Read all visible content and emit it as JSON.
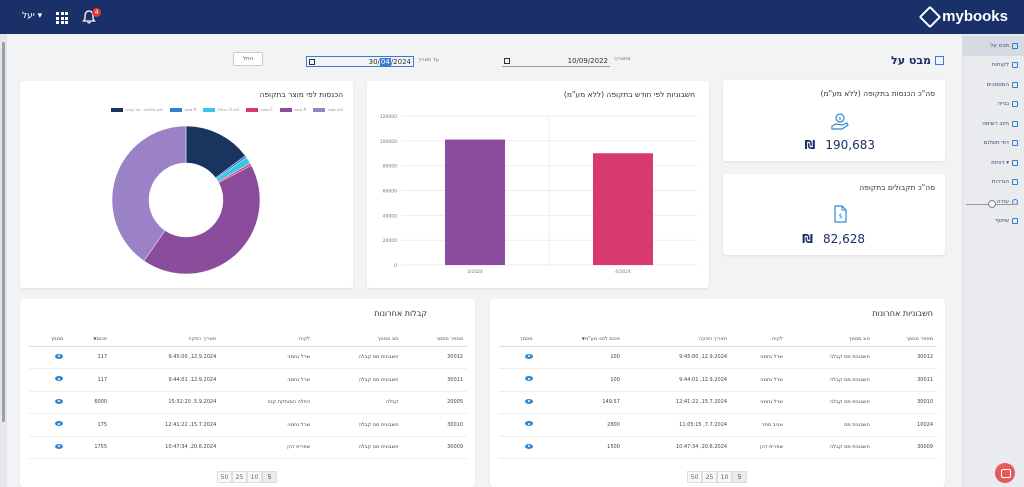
{
  "header": {
    "logo_text": "mybooks",
    "user_menu": "יעל ▾",
    "notification_count": "4"
  },
  "sidebar": {
    "items": [
      {
        "label": "מבט על",
        "active": true
      },
      {
        "label": "לקוחות"
      },
      {
        "label": "המסמכים"
      },
      {
        "label": "גבייה"
      },
      {
        "label": "חיוב רשימה"
      },
      {
        "label": "דפי תשלום"
      },
      {
        "label": "דוחות ▾"
      },
      {
        "label": "הגדרות"
      },
      {
        "label": "עזרה"
      },
      {
        "label": "שיתוף"
      }
    ]
  },
  "page": {
    "title": "מבט על",
    "from_label": "מתאריך",
    "from_date": "10/09/2022",
    "to_label": "עד תאריך",
    "to_date_prefix": "30/",
    "to_date_selected": "04",
    "to_date_suffix": "/2024",
    "clear_button": "החל"
  },
  "kpi": {
    "income": {
      "title": "סה\"כ הכנסות בתקופה (ללא מע\"מ)",
      "currency": "₪",
      "value": "190,683"
    },
    "receipts": {
      "title": "סה\"כ תקבולים בתקופה",
      "currency": "₪",
      "value": "82,628"
    }
  },
  "bar_chart_title": "חשבוניות לפי חודש בתקופה (ללא מע\"מ)",
  "donut_chart_title": "הכנסות לפי מוצר בתקופה",
  "chart_data": [
    {
      "type": "bar",
      "title": "חשבוניות לפי חודש בתקופה (ללא מע\"מ)",
      "categories": [
        "3/2024",
        "4/2024"
      ],
      "values": [
        101000,
        90000
      ],
      "colors": [
        "#8b4c9c",
        "#d63a6e"
      ],
      "ylim": [
        0,
        120000
      ],
      "yticks": [
        0,
        20000,
        40000,
        60000,
        80000,
        100000,
        120000
      ],
      "grid": true
    },
    {
      "type": "pie",
      "title": "הכנסות לפי מוצר בתקופה",
      "categories": [
        "לוגו מוצר",
        "מוצר A",
        "מוצר C",
        "הכולל V לוגו",
        "מוצר V",
        "תיק פלטות - שר עזרה"
      ],
      "values": [
        41,
        43,
        0.5,
        1.5,
        0.5,
        15
      ],
      "colors": [
        "#9b82c6",
        "#8b4c9c",
        "#d63a6e",
        "#35c6e8",
        "#3a7bd5",
        "#1a3460"
      ],
      "legend": "top"
    }
  ],
  "invoices_table": {
    "title": "חשבוניות אחרונות",
    "columns": [
      "מספר מסמך",
      "סוג מסמך",
      "לקוח",
      "תאריך הפקה",
      "סכום לפני מע\"מ",
      "מסמך"
    ],
    "rows": [
      [
        "30012",
        "חשבונית מס קבלה",
        "שרל נחמני",
        "12.9.2024, 9:45:00",
        "100"
      ],
      [
        "30011",
        "חשבונית מס קבלה",
        "שרל נחמני",
        "12.9.2024, 9:44:01",
        "100"
      ],
      [
        "30010",
        "חשבונית מס קבלה",
        "שרל נחמני",
        "15.7.2024, 12:41:22",
        "149.57"
      ],
      [
        "10024",
        "חשבונית מס",
        "אביב סתר",
        "7.7.2024, 11:05:15",
        "2800"
      ],
      [
        "30009",
        "חשבונית מס קבלה",
        "שפרית דהן",
        "20.6.2024, 10:47:34",
        "1500"
      ]
    ],
    "page_sizes": [
      "5",
      "10",
      "25",
      "50"
    ]
  },
  "receipts_table": {
    "title": "קבלות אחרונות",
    "columns": [
      "מספר מסמך",
      "סוג מסמך",
      "לקוח",
      "תאריך הפקה",
      "סכום",
      "מסמך"
    ],
    "rows": [
      [
        "30012",
        "חשבונית מס קבלה",
        "שרל נחמני",
        "12.9.2024, 9:45:00",
        "117"
      ],
      [
        "30011",
        "חשבונית מס קבלה",
        "שרל נחמני",
        "12.9.2024, 9:44:01",
        "117"
      ],
      [
        "20005",
        "קבלה",
        "החלה המותקת קנה",
        "5.9.2024, 15:32:20",
        "6000"
      ],
      [
        "30010",
        "חשבונית מס קבלה",
        "שרל נחמני",
        "15.7.2024, 12:41:22",
        "175"
      ],
      [
        "30009",
        "חשבונית מס קבלה",
        "שפרית דהן",
        "20.6.2024, 10:47:34",
        "1755"
      ]
    ],
    "page_sizes": [
      "5",
      "10",
      "25",
      "50"
    ]
  }
}
